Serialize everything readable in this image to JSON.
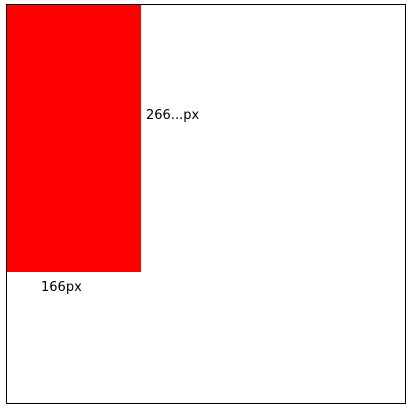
{
  "canvas": {
    "border_color": "#000000",
    "background": "#ffffff"
  },
  "box": {
    "color": "#ff0000",
    "height_label": "266...px",
    "width_label": "166px"
  }
}
